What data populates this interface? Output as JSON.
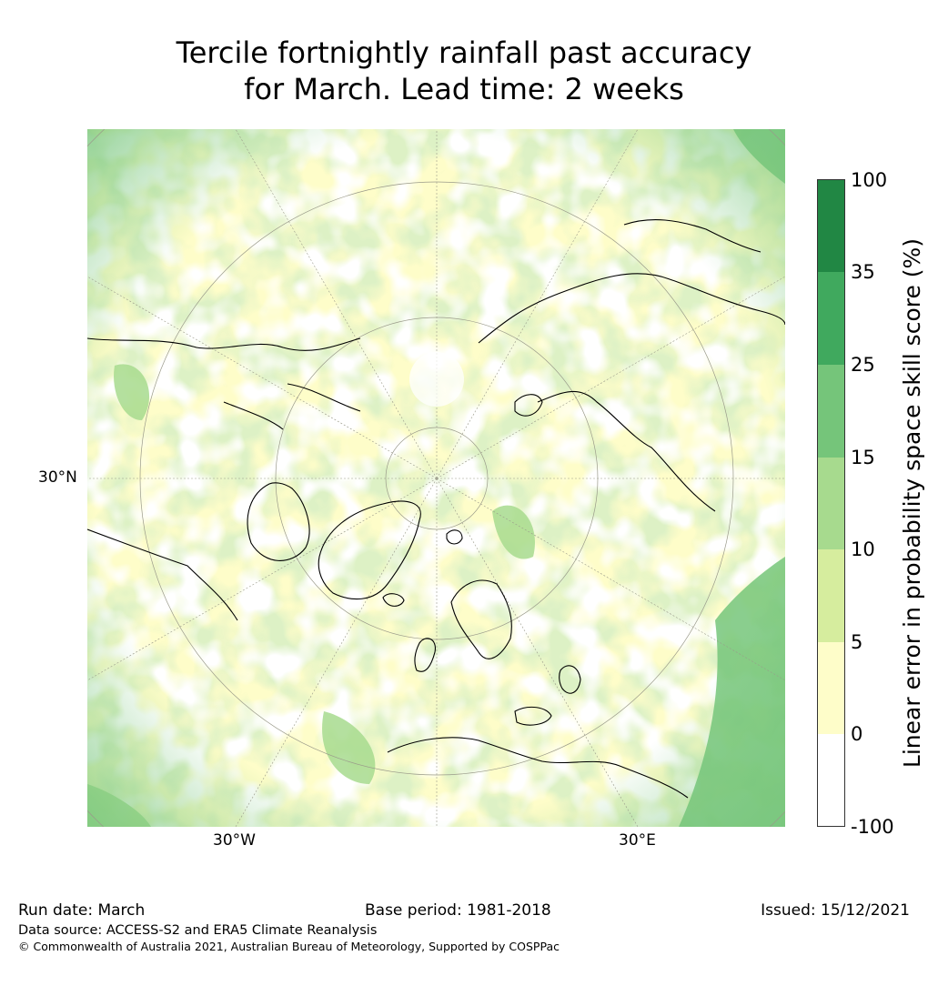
{
  "title": {
    "line1": "Tercile fortnightly rainfall past accuracy",
    "line2": "for March. Lead time: 2 weeks"
  },
  "map": {
    "projection": "north-polar-stereographic",
    "lat_label": "30°N",
    "lon_labels": {
      "left": "30°W",
      "right": "30°E"
    }
  },
  "colorbar": {
    "title": "Linear error in probability space skill score (%)",
    "ticks": [
      "100",
      "35",
      "25",
      "15",
      "10",
      "5",
      "0",
      "-100"
    ],
    "colors": [
      "#218744",
      "#40a95e",
      "#75c57a",
      "#a7da8e",
      "#d6ed9e",
      "#fefdc9",
      "#ffffff"
    ],
    "bin_ranges": [
      [
        35,
        100
      ],
      [
        25,
        35
      ],
      [
        15,
        25
      ],
      [
        10,
        15
      ],
      [
        5,
        10
      ],
      [
        0,
        5
      ],
      [
        -100,
        0
      ]
    ]
  },
  "footer": {
    "run_date": "Run date: March",
    "base_period": "Base period: 1981-2018",
    "issued": "Issued: 15/12/2021",
    "data_source": "Data source: ACCESS-S2 and ERA5 Climate Reanalysis",
    "copyright": "© Commonwealth of Australia 2021, Australian Bureau of Meteorology, Supported by COSPPac"
  }
}
